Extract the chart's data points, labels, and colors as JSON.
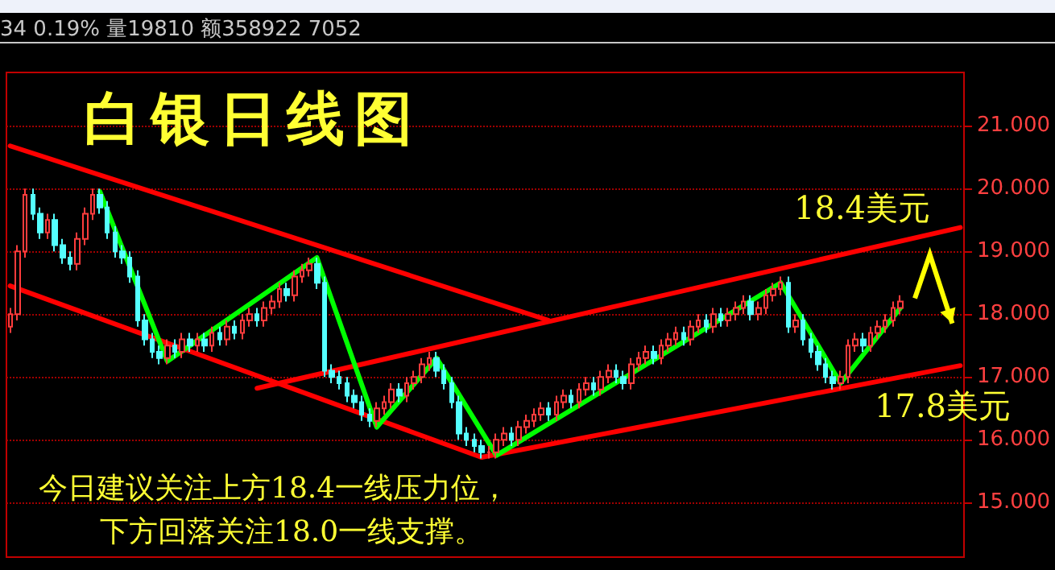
{
  "chart_data": {
    "type": "candlestick",
    "title": "白银日线图",
    "subtitle": "34 0.19% 量19810 额358922 7052",
    "annotations": [
      "18.4美元",
      "17.8美元",
      "今日建议关注上方18.4一线压力位，",
      "下方回落关注18.0一线支撑。"
    ],
    "categories": [
      null,
      null,
      null,
      null,
      null,
      null,
      null,
      null,
      null,
      null,
      null,
      null,
      null,
      null,
      null,
      null,
      null,
      null,
      null,
      null,
      null,
      null,
      null,
      null,
      null,
      null,
      null,
      null,
      null,
      null,
      null,
      null,
      null,
      null,
      null,
      null,
      null,
      null,
      null,
      null,
      null,
      null,
      null,
      null,
      null,
      null,
      null,
      null,
      null,
      null,
      null,
      null,
      null,
      null,
      null,
      null,
      null,
      null,
      null,
      null,
      null,
      null,
      null,
      null,
      null,
      null,
      null,
      null,
      null,
      null,
      null,
      null,
      null,
      null,
      null,
      null,
      null,
      null,
      null,
      null,
      null,
      null,
      null,
      null,
      null,
      null,
      null,
      null,
      null,
      null,
      null,
      null,
      null,
      null,
      null,
      null,
      null,
      null,
      null,
      null,
      null,
      null,
      null,
      null,
      null,
      null,
      null,
      null,
      null,
      null,
      null,
      null,
      null,
      null,
      null,
      null,
      null,
      null,
      null,
      null,
      null,
      null,
      null,
      null,
      null,
      null,
      null,
      null
    ],
    "ylim": [
      14.13,
      21.85
    ],
    "yticks": [
      {
        "value": 15,
        "label": "15.000"
      },
      {
        "value": 16,
        "label": "16.000"
      },
      {
        "value": 17,
        "label": "17.000"
      },
      {
        "value": 18,
        "label": "18.000"
      },
      {
        "value": 19,
        "label": "19.000"
      },
      {
        "value": 20,
        "label": "20.000"
      },
      {
        "value": 21,
        "label": "21.000"
      }
    ],
    "tick_labels": "y",
    "grid": "y",
    "series": [
      {
        "colors": [
          "#ff3c3c",
          "#ff3c3c",
          "#ff3c3c",
          "#54ffff",
          "#54ffff",
          "#ff3c3c",
          "#54ffff",
          "#54ffff",
          "#54ffff",
          "#ff3c3c",
          "#ff3c3c",
          "#ff3c3c",
          "#54ffff",
          "#54ffff",
          "#54ffff",
          "#54ffff",
          "#54ffff",
          "#54ffff",
          "#54ffff",
          "#54ffff",
          "#54ffff",
          "#ff3c3c",
          "#54ffff",
          "#ff3c3c",
          "#54ffff",
          "#ff3c3c",
          "#54ffff",
          "#ff3c3c",
          "#54ffff",
          "#ff3c3c",
          "#54ffff",
          "#ff3c3c",
          "#ff3c3c",
          "#54ffff",
          "#ff3c3c",
          "#ff3c3c",
          "#ff3c3c",
          "#54ffff",
          "#ff3c3c",
          "#ff3c3c",
          "#ff3c3c",
          "#54ffff",
          "#54ffff",
          "#54ffff",
          "#54ffff",
          "#54ffff",
          "#54ffff",
          "#54ffff",
          "#54ffff",
          "#ff3c3c",
          "#ff3c3c",
          "#ff3c3c",
          "#54ffff",
          "#ff3c3c",
          "#ff3c3c",
          "#ff3c3c",
          "#ff3c3c",
          "#54ffff",
          "#54ffff",
          "#54ffff",
          "#54ffff",
          "#54ffff",
          "#54ffff",
          "#54ffff",
          "#ff3c3c",
          "#ff3c3c",
          "#ff3c3c",
          "#54ffff",
          "#ff3c3c",
          "#ff3c3c",
          "#ff3c3c",
          "#ff3c3c",
          "#54ffff",
          "#ff3c3c",
          "#ff3c3c",
          "#54ffff",
          "#ff3c3c",
          "#ff3c3c",
          "#54ffff",
          "#ff3c3c",
          "#ff3c3c",
          "#54ffff",
          "#54ffff",
          "#ff3c3c",
          "#ff3c3c",
          "#ff3c3c",
          "#54ffff",
          "#ff3c3c",
          "#ff3c3c",
          "#ff3c3c",
          "#54ffff",
          "#ff3c3c",
          "#ff3c3c",
          "#54ffff",
          "#ff3c3c",
          "#54ffff",
          "#ff3c3c",
          "#ff3c3c",
          "#ff3c3c",
          "#54ffff",
          "#ff3c3c",
          "#ff3c3c",
          "#ff3c3c",
          "#ff3c3c",
          "#54ffff",
          "#ff3c3c",
          "#54ffff",
          "#54ffff",
          "#54ffff",
          "#54ffff",
          "#54ffff",
          "#ff3c3c",
          "#ff3c3c",
          "#ff3c3c",
          "#54ffff",
          "#ff3c3c",
          "#ff3c3c",
          "#ff3c3c",
          "#ff3c3c",
          "#ff3c3c",
          null,
          null,
          null,
          null,
          null,
          null,
          null,
          null
        ],
        "ohlc": [
          [
            17.8,
            18.1,
            17.7,
            18.0
          ],
          [
            18.0,
            19.1,
            17.9,
            19.0
          ],
          [
            19.0,
            20.0,
            18.9,
            19.9
          ],
          [
            19.9,
            20.0,
            19.5,
            19.6
          ],
          [
            19.6,
            19.7,
            19.2,
            19.3
          ],
          [
            19.3,
            19.6,
            19.2,
            19.5
          ],
          [
            19.5,
            19.6,
            19.0,
            19.1
          ],
          [
            19.1,
            19.2,
            18.8,
            18.9
          ],
          [
            18.9,
            19.0,
            18.7,
            18.8
          ],
          [
            18.8,
            19.3,
            18.7,
            19.2
          ],
          [
            19.2,
            19.7,
            19.1,
            19.6
          ],
          [
            19.6,
            20.0,
            19.5,
            19.9
          ],
          [
            19.9,
            20.0,
            19.6,
            19.7
          ],
          [
            19.7,
            19.8,
            19.2,
            19.3
          ],
          [
            19.3,
            19.4,
            18.9,
            19.0
          ],
          [
            19.0,
            19.1,
            18.8,
            18.9
          ],
          [
            18.9,
            19.0,
            18.5,
            18.6
          ],
          [
            18.6,
            18.7,
            17.8,
            17.9
          ],
          [
            17.9,
            18.0,
            17.5,
            17.6
          ],
          [
            17.6,
            17.7,
            17.3,
            17.4
          ],
          [
            17.4,
            17.5,
            17.2,
            17.3
          ],
          [
            17.3,
            17.6,
            17.2,
            17.5
          ],
          [
            17.5,
            17.6,
            17.3,
            17.4
          ],
          [
            17.4,
            17.7,
            17.3,
            17.6
          ],
          [
            17.6,
            17.7,
            17.4,
            17.5
          ],
          [
            17.5,
            17.7,
            17.4,
            17.6
          ],
          [
            17.6,
            17.7,
            17.4,
            17.5
          ],
          [
            17.5,
            17.8,
            17.4,
            17.7
          ],
          [
            17.7,
            17.8,
            17.5,
            17.6
          ],
          [
            17.6,
            17.9,
            17.5,
            17.8
          ],
          [
            17.8,
            17.9,
            17.6,
            17.7
          ],
          [
            17.7,
            18.0,
            17.6,
            17.9
          ],
          [
            17.9,
            18.1,
            17.8,
            18.0
          ],
          [
            18.0,
            18.1,
            17.8,
            17.9
          ],
          [
            17.9,
            18.2,
            17.8,
            18.1
          ],
          [
            18.1,
            18.3,
            18.0,
            18.2
          ],
          [
            18.2,
            18.5,
            18.1,
            18.4
          ],
          [
            18.4,
            18.5,
            18.2,
            18.3
          ],
          [
            18.3,
            18.7,
            18.2,
            18.6
          ],
          [
            18.6,
            18.8,
            18.5,
            18.7
          ],
          [
            18.7,
            18.9,
            18.6,
            18.8
          ],
          [
            18.8,
            18.9,
            18.4,
            18.5
          ],
          [
            18.5,
            18.6,
            17.0,
            17.1
          ],
          [
            17.1,
            17.2,
            16.9,
            17.0
          ],
          [
            17.0,
            17.1,
            16.8,
            16.9
          ],
          [
            16.9,
            17.0,
            16.6,
            16.7
          ],
          [
            16.7,
            16.8,
            16.5,
            16.6
          ],
          [
            16.6,
            16.7,
            16.3,
            16.4
          ],
          [
            16.4,
            16.5,
            16.2,
            16.3
          ],
          [
            16.3,
            16.6,
            16.2,
            16.5
          ],
          [
            16.5,
            16.7,
            16.4,
            16.6
          ],
          [
            16.6,
            16.9,
            16.5,
            16.8
          ],
          [
            16.8,
            16.9,
            16.6,
            16.7
          ],
          [
            16.7,
            17.0,
            16.6,
            16.9
          ],
          [
            16.9,
            17.1,
            16.8,
            17.0
          ],
          [
            17.0,
            17.3,
            16.9,
            17.2
          ],
          [
            17.2,
            17.4,
            17.1,
            17.3
          ],
          [
            17.3,
            17.4,
            17.0,
            17.1
          ],
          [
            17.1,
            17.2,
            16.8,
            16.9
          ],
          [
            16.9,
            17.0,
            16.5,
            16.6
          ],
          [
            16.6,
            16.7,
            16.0,
            16.1
          ],
          [
            16.1,
            16.2,
            15.9,
            16.0
          ],
          [
            16.0,
            16.1,
            15.8,
            15.9
          ],
          [
            15.9,
            16.0,
            15.7,
            15.8
          ],
          [
            15.8,
            15.9,
            15.7,
            15.8
          ],
          [
            15.8,
            16.1,
            15.7,
            16.0
          ],
          [
            16.0,
            16.2,
            15.9,
            16.1
          ],
          [
            16.1,
            16.2,
            15.9,
            16.0
          ],
          [
            16.0,
            16.3,
            15.9,
            16.2
          ],
          [
            16.2,
            16.4,
            16.1,
            16.3
          ],
          [
            16.3,
            16.5,
            16.2,
            16.4
          ],
          [
            16.4,
            16.6,
            16.3,
            16.5
          ],
          [
            16.5,
            16.6,
            16.3,
            16.4
          ],
          [
            16.4,
            16.7,
            16.3,
            16.6
          ],
          [
            16.6,
            16.8,
            16.5,
            16.7
          ],
          [
            16.7,
            16.8,
            16.5,
            16.6
          ],
          [
            16.6,
            16.9,
            16.5,
            16.8
          ],
          [
            16.8,
            17.0,
            16.7,
            16.9
          ],
          [
            16.9,
            17.0,
            16.7,
            16.8
          ],
          [
            16.8,
            17.1,
            16.7,
            17.0
          ],
          [
            17.0,
            17.2,
            16.9,
            17.1
          ],
          [
            17.1,
            17.2,
            16.9,
            17.0
          ],
          [
            17.0,
            17.1,
            16.8,
            16.9
          ],
          [
            16.9,
            17.3,
            16.8,
            17.2
          ],
          [
            17.2,
            17.4,
            17.1,
            17.3
          ],
          [
            17.3,
            17.5,
            17.2,
            17.4
          ],
          [
            17.4,
            17.5,
            17.2,
            17.3
          ],
          [
            17.3,
            17.6,
            17.2,
            17.5
          ],
          [
            17.5,
            17.7,
            17.4,
            17.6
          ],
          [
            17.6,
            17.8,
            17.5,
            17.7
          ],
          [
            17.7,
            17.8,
            17.5,
            17.6
          ],
          [
            17.6,
            17.9,
            17.5,
            17.8
          ],
          [
            17.8,
            18.0,
            17.7,
            17.9
          ],
          [
            17.9,
            18.0,
            17.7,
            17.8
          ],
          [
            17.8,
            18.1,
            17.7,
            18.0
          ],
          [
            18.0,
            18.1,
            17.8,
            17.9
          ],
          [
            17.9,
            18.1,
            17.8,
            18.0
          ],
          [
            18.0,
            18.2,
            17.9,
            18.1
          ],
          [
            18.1,
            18.3,
            18.0,
            18.2
          ],
          [
            18.2,
            18.3,
            17.9,
            18.0
          ],
          [
            18.0,
            18.2,
            17.9,
            18.1
          ],
          [
            18.1,
            18.4,
            18.0,
            18.3
          ],
          [
            18.3,
            18.5,
            18.2,
            18.4
          ],
          [
            18.4,
            18.6,
            18.3,
            18.5
          ],
          [
            18.5,
            18.6,
            17.7,
            17.8
          ],
          [
            17.8,
            18.0,
            17.7,
            17.9
          ],
          [
            17.9,
            18.0,
            17.5,
            17.6
          ],
          [
            17.6,
            17.7,
            17.3,
            17.4
          ],
          [
            17.4,
            17.5,
            17.1,
            17.2
          ],
          [
            17.2,
            17.3,
            16.9,
            17.0
          ],
          [
            17.0,
            17.1,
            16.8,
            16.9
          ],
          [
            16.9,
            17.1,
            16.8,
            17.0
          ],
          [
            17.0,
            17.6,
            16.9,
            17.5
          ],
          [
            17.5,
            17.7,
            17.4,
            17.6
          ],
          [
            17.6,
            17.7,
            17.4,
            17.5
          ],
          [
            17.5,
            17.8,
            17.4,
            17.7
          ],
          [
            17.7,
            17.9,
            17.6,
            17.8
          ],
          [
            17.8,
            18.0,
            17.7,
            17.9
          ],
          [
            17.9,
            18.2,
            17.8,
            18.1
          ],
          [
            18.1,
            18.3,
            18.0,
            18.2
          ],
          null,
          null,
          null,
          null,
          null,
          null,
          null,
          null
        ]
      },
      {
        "type": "line",
        "color": "#ff0000",
        "values": [
          20.68,
          null,
          null,
          null,
          null,
          null,
          null,
          null,
          null,
          null,
          null,
          null,
          null,
          null,
          null,
          null,
          null,
          null,
          null,
          null,
          null,
          null,
          null,
          null,
          null,
          null,
          null,
          null,
          null,
          null,
          null,
          null,
          null,
          null,
          null,
          null,
          null,
          null,
          null,
          null,
          null,
          null,
          null,
          null,
          null,
          null,
          null,
          null,
          null,
          null,
          null,
          null,
          null,
          null,
          null,
          null,
          null,
          null,
          null,
          null,
          null,
          null,
          null,
          null,
          null,
          null,
          null,
          null,
          null,
          null,
          null,
          null,
          17.9,
          null,
          null,
          null,
          null,
          null,
          null,
          null,
          null,
          null,
          null,
          null,
          null,
          null,
          null,
          null,
          null,
          null,
          null,
          null,
          null,
          null,
          null,
          null,
          null,
          null,
          null,
          null,
          null,
          null,
          null,
          null,
          null,
          null,
          null,
          null,
          null,
          null,
          null,
          null,
          null,
          null,
          null,
          null,
          null,
          null,
          null,
          null,
          null,
          null,
          null,
          null,
          null,
          null,
          null,
          null
        ]
      },
      {
        "type": "line",
        "color": "#ff0000",
        "values": [
          18.45,
          null,
          null,
          null,
          null,
          null,
          null,
          null,
          null,
          null,
          null,
          null,
          null,
          null,
          null,
          null,
          null,
          null,
          null,
          null,
          null,
          null,
          null,
          null,
          null,
          null,
          null,
          null,
          null,
          null,
          null,
          null,
          null,
          null,
          null,
          null,
          null,
          null,
          null,
          null,
          null,
          null,
          null,
          null,
          null,
          null,
          null,
          null,
          null,
          null,
          null,
          null,
          null,
          null,
          null,
          null,
          null,
          null,
          null,
          null,
          null,
          null,
          null,
          15.72,
          null,
          null,
          null,
          null,
          null,
          null,
          null,
          null,
          null,
          null,
          null,
          null,
          null,
          null,
          null,
          null,
          null,
          null,
          null,
          null,
          null,
          null,
          null,
          null,
          null,
          null,
          null,
          null,
          null,
          null,
          null,
          null,
          null,
          null,
          null,
          null,
          null,
          null,
          null,
          null,
          null,
          null,
          null,
          null,
          null,
          null,
          null,
          null,
          null,
          null,
          null,
          null,
          null,
          null,
          null,
          null,
          null,
          null,
          null,
          null,
          null,
          null,
          null,
          null
        ]
      },
      {
        "type": "line",
        "color": "#ff0000",
        "values": [
          null,
          null,
          null,
          null,
          null,
          null,
          null,
          null,
          null,
          null,
          null,
          null,
          null,
          null,
          null,
          null,
          null,
          null,
          null,
          null,
          null,
          null,
          null,
          null,
          null,
          null,
          null,
          null,
          null,
          null,
          null,
          null,
          null,
          16.82,
          null,
          null,
          null,
          null,
          null,
          null,
          null,
          null,
          null,
          null,
          null,
          null,
          null,
          null,
          null,
          null,
          null,
          null,
          null,
          null,
          null,
          null,
          null,
          null,
          null,
          null,
          null,
          null,
          null,
          null,
          null,
          null,
          null,
          null,
          null,
          null,
          null,
          null,
          null,
          null,
          null,
          null,
          null,
          null,
          null,
          null,
          null,
          null,
          null,
          null,
          null,
          null,
          null,
          null,
          null,
          null,
          null,
          null,
          null,
          null,
          null,
          null,
          null,
          null,
          null,
          null,
          null,
          null,
          null,
          null,
          null,
          null,
          null,
          null,
          null,
          null,
          null,
          null,
          null,
          null,
          null,
          null,
          null,
          null,
          null,
          null,
          null,
          null,
          null,
          null,
          null,
          null,
          null,
          19.38
        ]
      },
      {
        "type": "line",
        "color": "#ff0000",
        "values": [
          null,
          null,
          null,
          null,
          null,
          null,
          null,
          null,
          null,
          null,
          null,
          null,
          null,
          null,
          null,
          null,
          null,
          null,
          null,
          null,
          null,
          null,
          null,
          null,
          null,
          null,
          null,
          null,
          null,
          null,
          null,
          null,
          null,
          null,
          null,
          null,
          null,
          null,
          null,
          null,
          null,
          null,
          null,
          null,
          null,
          null,
          null,
          null,
          null,
          null,
          null,
          null,
          null,
          null,
          null,
          null,
          null,
          null,
          null,
          null,
          null,
          null,
          null,
          15.72,
          null,
          null,
          null,
          null,
          null,
          null,
          null,
          null,
          null,
          null,
          null,
          null,
          null,
          null,
          null,
          null,
          null,
          null,
          null,
          null,
          null,
          null,
          null,
          null,
          null,
          null,
          null,
          null,
          null,
          null,
          null,
          null,
          null,
          null,
          null,
          null,
          null,
          null,
          null,
          null,
          null,
          null,
          null,
          null,
          null,
          null,
          null,
          null,
          null,
          null,
          null,
          null,
          null,
          null,
          null,
          null,
          null,
          null,
          null,
          null,
          null,
          null,
          null,
          17.18
        ]
      },
      {
        "type": "line",
        "color": "#00ff00",
        "values": [
          null,
          null,
          null,
          null,
          null,
          null,
          null,
          null,
          null,
          null,
          null,
          null,
          19.95,
          null,
          null,
          null,
          null,
          null,
          null,
          null,
          null,
          17.25,
          null,
          null,
          null,
          null,
          null,
          null,
          null,
          null,
          null,
          null,
          null,
          null,
          null,
          null,
          null,
          null,
          null,
          null,
          null,
          18.9,
          null,
          null,
          null,
          null,
          null,
          null,
          null,
          16.2,
          null,
          null,
          null,
          null,
          null,
          null,
          null,
          17.3,
          null,
          null,
          null,
          null,
          null,
          null,
          null,
          15.75,
          null,
          null,
          null,
          null,
          null,
          null,
          null,
          null,
          null,
          null,
          null,
          null,
          null,
          null,
          null,
          null,
          null,
          null,
          null,
          null,
          null,
          null,
          null,
          null,
          null,
          null,
          null,
          null,
          null,
          null,
          null,
          null,
          null,
          null,
          null,
          null,
          null,
          18.5,
          null,
          null,
          null,
          null,
          null,
          null,
          null,
          16.9,
          null,
          null,
          null,
          null,
          null,
          null,
          null,
          18.1,
          null,
          null,
          null,
          null,
          null,
          null,
          null,
          null
        ]
      }
    ]
  }
}
